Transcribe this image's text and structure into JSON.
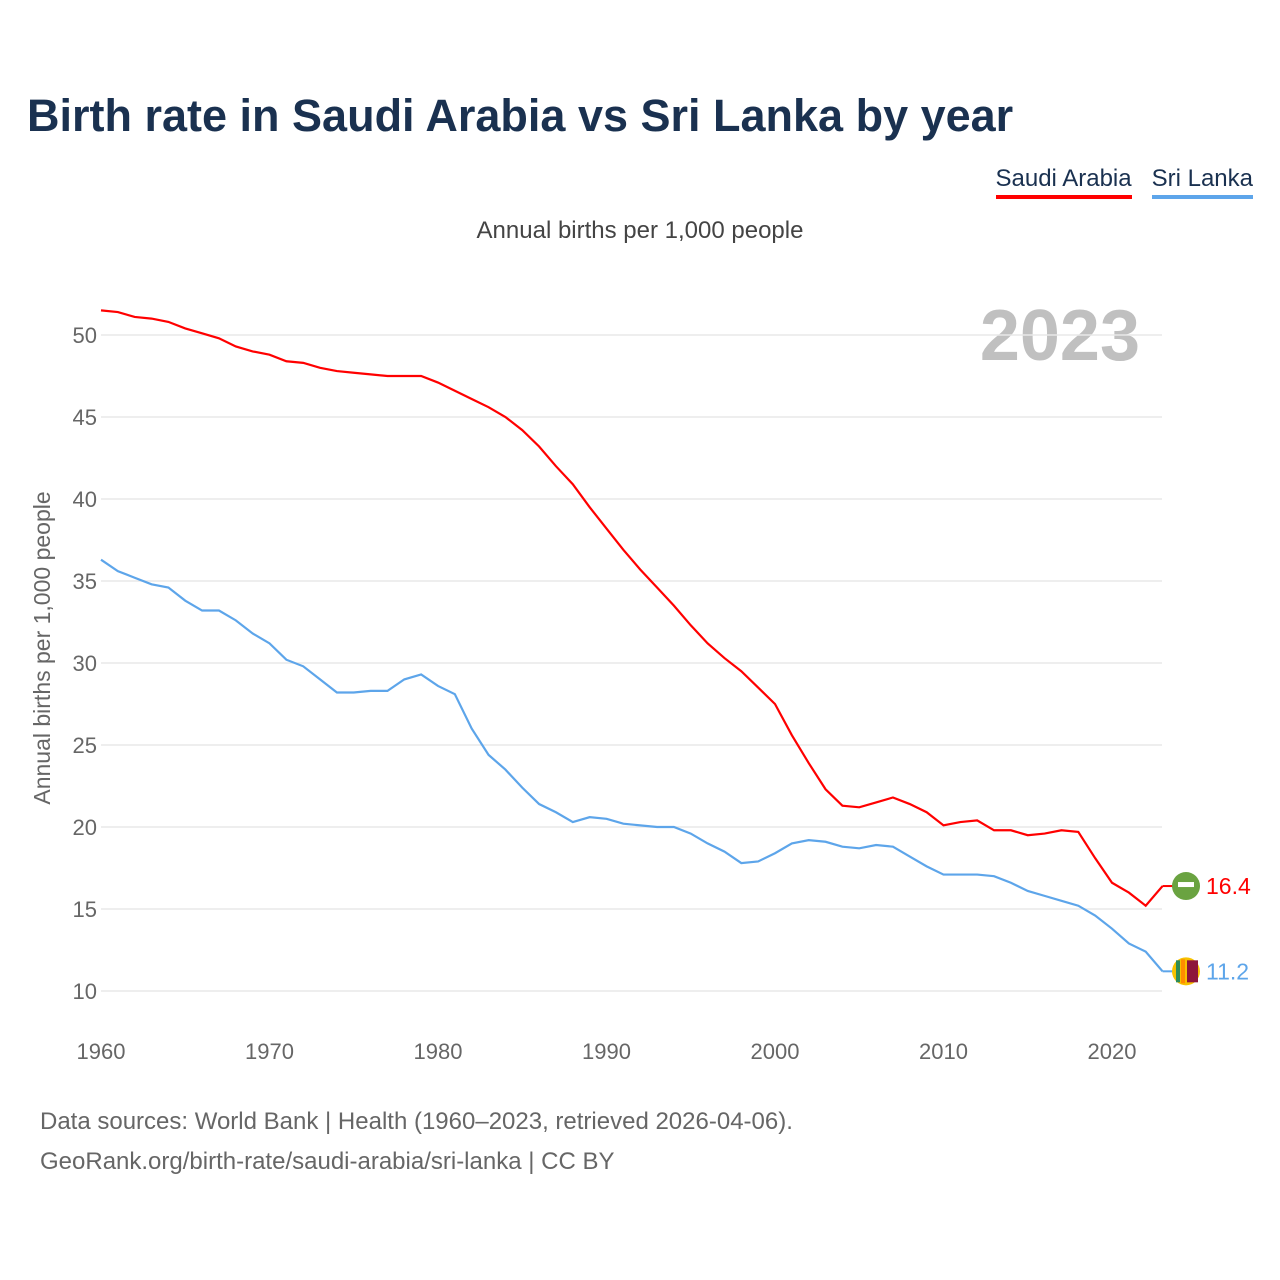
{
  "title": "Birth rate in Saudi Arabia vs Sri Lanka by year",
  "footer": {
    "line1": "Data sources: World Bank | Health (1960–2023, retrieved 2026-04-06).",
    "line2": "GeoRank.org/birth-rate/saudi-arabia/sri-lanka | CC BY"
  },
  "chart_data": {
    "type": "line",
    "title": "Birth rate in Saudi Arabia vs Sri Lanka by year",
    "subtitle": "Annual births per 1,000 people",
    "ylabel": "Annual births per 1,000 people",
    "xlabel": "",
    "year_label": "2023",
    "xlim": [
      1960,
      2023
    ],
    "ylim": [
      8,
      53
    ],
    "xticks": [
      1960,
      1970,
      1980,
      1990,
      2000,
      2010,
      2020
    ],
    "yticks": [
      10,
      15,
      20,
      25,
      30,
      35,
      40,
      45,
      50
    ],
    "legend_position": "top-right",
    "x_start": 1960,
    "series": [
      {
        "name": "Saudi Arabia",
        "color": "#ff0000",
        "end_label": "16.4",
        "flag_icon": "saudi-arabia-flag-icon",
        "values": [
          51.5,
          51.4,
          51.1,
          51.0,
          50.8,
          50.4,
          50.1,
          49.8,
          49.3,
          49.0,
          48.8,
          48.4,
          48.3,
          48.0,
          47.8,
          47.7,
          47.6,
          47.5,
          47.5,
          47.5,
          47.1,
          46.6,
          46.1,
          45.6,
          45.0,
          44.2,
          43.2,
          42.0,
          40.9,
          39.5,
          38.2,
          36.9,
          35.7,
          34.6,
          33.5,
          32.3,
          31.2,
          30.3,
          29.5,
          28.5,
          27.5,
          25.6,
          23.9,
          22.3,
          21.3,
          21.2,
          21.5,
          21.8,
          21.4,
          20.9,
          20.1,
          20.3,
          20.4,
          19.8,
          19.8,
          19.5,
          19.6,
          19.8,
          19.7,
          18.1,
          16.6,
          16.0,
          15.2,
          16.4
        ]
      },
      {
        "name": "Sri Lanka",
        "color": "#5da5ea",
        "end_label": "11.2",
        "flag_icon": "sri-lanka-flag-icon",
        "values": [
          36.3,
          35.6,
          35.2,
          34.8,
          34.6,
          33.8,
          33.2,
          33.2,
          32.6,
          31.8,
          31.2,
          30.2,
          29.8,
          29.0,
          28.2,
          28.2,
          28.3,
          28.3,
          29.0,
          29.3,
          28.6,
          28.1,
          26.0,
          24.4,
          23.5,
          22.4,
          21.4,
          20.9,
          20.3,
          20.6,
          20.5,
          20.2,
          20.1,
          20.0,
          20.0,
          19.6,
          19.0,
          18.5,
          17.8,
          17.9,
          18.4,
          19.0,
          19.2,
          19.1,
          18.8,
          18.7,
          18.9,
          18.8,
          18.2,
          17.6,
          17.1,
          17.1,
          17.1,
          17.0,
          16.6,
          16.1,
          15.8,
          15.5,
          15.2,
          14.6,
          13.8,
          12.9,
          12.4,
          11.2
        ]
      }
    ]
  }
}
